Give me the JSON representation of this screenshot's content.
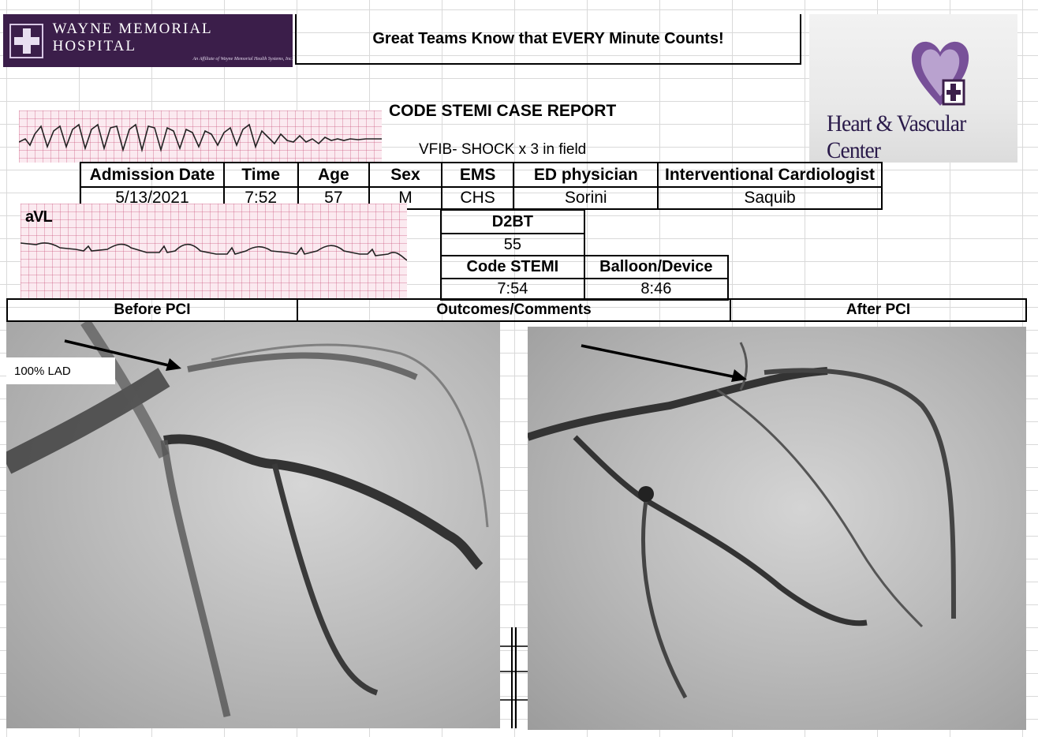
{
  "header": {
    "hospital_name": "WAYNE MEMORIAL HOSPITAL",
    "hospital_affiliate": "An Affiliate of Wayne Memorial Health Systems, Inc.",
    "slogan": "Great Teams Know that EVERY Minute Counts!",
    "center_logo_text": "Heart & Vascular Center"
  },
  "report": {
    "title": "CODE STEMI CASE REPORT",
    "subtitle": "VFIB- SHOCK x 3 in field"
  },
  "ecg": {
    "lead_label": "aVL"
  },
  "patient_table": {
    "headers": [
      "Admission Date",
      "Time",
      "Age",
      "Sex",
      "EMS",
      "ED physician",
      "Interventional Cardiologist"
    ],
    "values": [
      "5/13/2021",
      "7:52",
      "57",
      "M",
      "CHS",
      "Sorini",
      "Saquib"
    ]
  },
  "times": {
    "d2bt_label": "D2BT",
    "d2bt_value": "55",
    "code_stemi_label": "Code STEMI",
    "code_stemi_value": "7:54",
    "balloon_label": "Balloon/Device",
    "balloon_value": "8:46"
  },
  "sections": {
    "before": "Before PCI",
    "outcomes": "Outcomes/Comments",
    "after": "After PCI"
  },
  "angiogram": {
    "before_label": "100% LAD"
  },
  "colors": {
    "logo_purple": "#3b1e4a",
    "ecg_paper": "#fbeaf0",
    "grid": "#d9d9d9"
  }
}
